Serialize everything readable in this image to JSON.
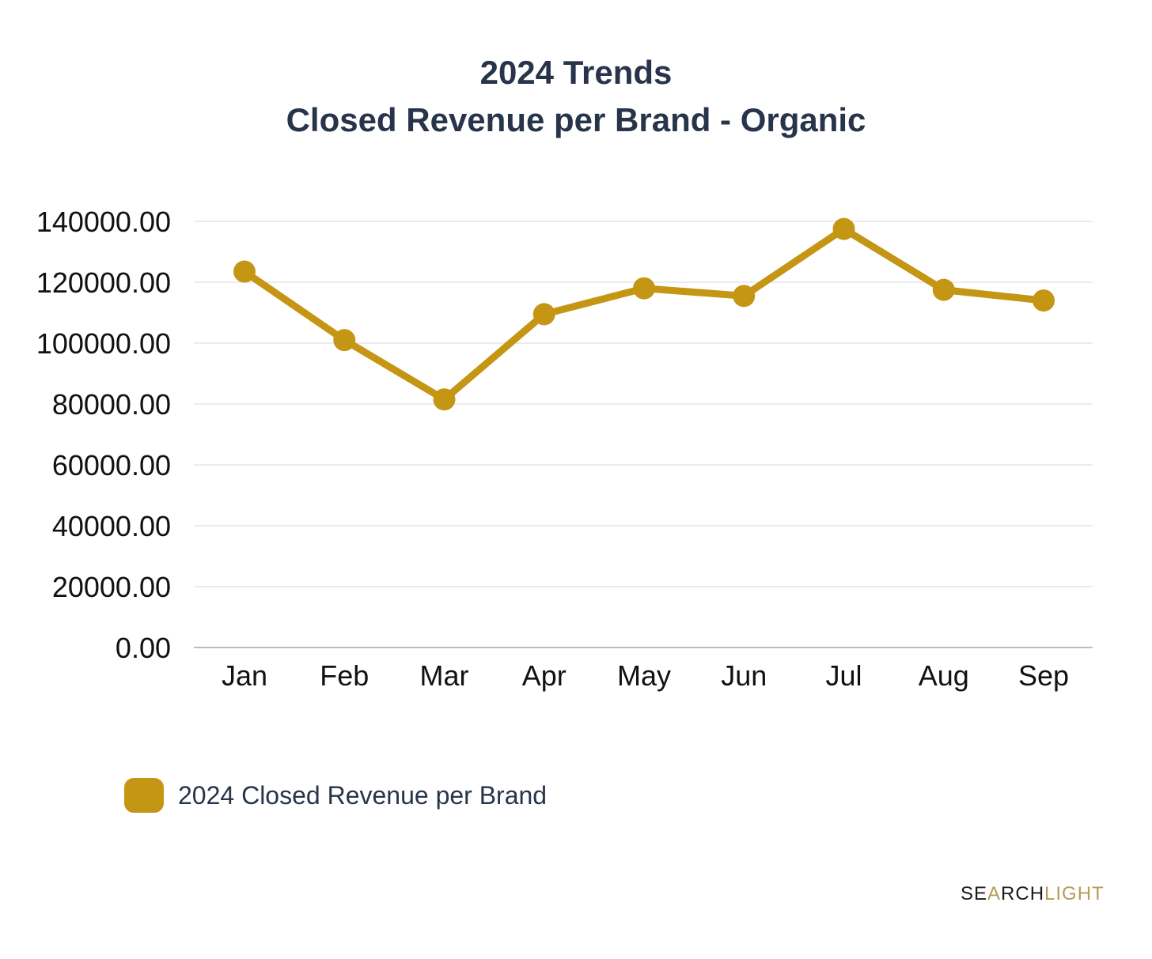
{
  "chart_data": {
    "type": "line",
    "title": "2024 Trends",
    "subtitle": "Closed Revenue per Brand - Organic",
    "categories": [
      "Jan",
      "Feb",
      "Mar",
      "Apr",
      "May",
      "Jun",
      "Jul",
      "Aug",
      "Sep"
    ],
    "series": [
      {
        "name": "2024 Closed Revenue per Brand",
        "values": [
          123500,
          101000,
          81500,
          109500,
          118000,
          115500,
          137500,
          117500,
          114000
        ],
        "color": "#c59514"
      }
    ],
    "yticks": [
      "0.00",
      "20000.00",
      "40000.00",
      "60000.00",
      "80000.00",
      "100000.00",
      "120000.00",
      "140000.00"
    ],
    "ylim": [
      0,
      140000
    ],
    "grid": true,
    "legend_position": "bottom-left"
  },
  "branding": {
    "logo_text": "SEARCHLIGHT",
    "logo_part1": "SE",
    "logo_mark": "A",
    "logo_part2": "RCH",
    "logo_part3": "LIGHT"
  }
}
